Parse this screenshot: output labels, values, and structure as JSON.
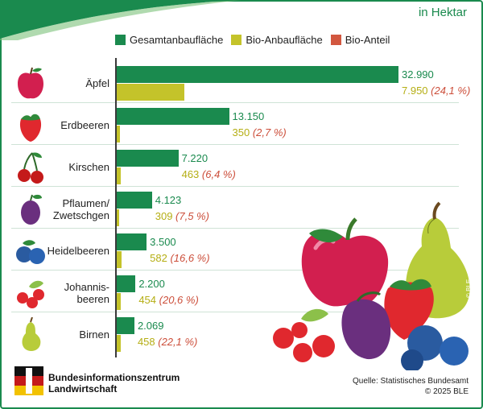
{
  "unit_label": "in Hektar",
  "legend": [
    {
      "label": "Gesamtanbaufläche",
      "color": "#1a8a4e"
    },
    {
      "label": "Bio-Anbaufläche",
      "color": "#c4c32a"
    },
    {
      "label": "Bio-Anteil",
      "color": "#d2573f"
    }
  ],
  "chart_data": {
    "type": "bar",
    "orientation": "horizontal",
    "title": "",
    "unit": "in Hektar",
    "categories": [
      "Äpfel",
      "Erdbeeren",
      "Kirschen",
      "Pflaumen/ Zwetschgen",
      "Heidelbeeren",
      "Johannis- beeren",
      "Birnen"
    ],
    "series": [
      {
        "name": "Gesamtanbaufläche",
        "values": [
          32990,
          13150,
          7220,
          4123,
          3500,
          2200,
          2069
        ],
        "labels": [
          "32.990",
          "13.150",
          "7.220",
          "4.123",
          "3.500",
          "2.200",
          "2.069"
        ]
      },
      {
        "name": "Bio-Anbaufläche",
        "values": [
          7950,
          350,
          463,
          309,
          582,
          454,
          458
        ],
        "labels": [
          "7.950",
          "350",
          "463",
          "309",
          "582",
          "454",
          "458"
        ]
      }
    ],
    "bio_share": [
      "(24,1 %)",
      "(2,7 %)",
      "(6,4 %)",
      "(7,5 %)",
      "(16,6 %)",
      "(20,6 %)",
      "(22,1 %)"
    ],
    "xlim": [
      0,
      32990
    ]
  },
  "footer": {
    "org_line1": "Bundesinformationszentrum",
    "org_line2": "Landwirtschaft",
    "source": "Quelle: Statistisches Bundesamt",
    "copyright": "© 2025 BLE"
  },
  "credit": "© BLE"
}
